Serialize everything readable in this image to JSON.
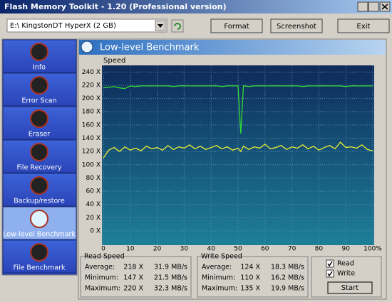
{
  "window": {
    "title": "Flash Memory Toolkit - 1.20 (Professional version)"
  },
  "toolbar": {
    "drive": "E:\\ KingstonDT HyperX (2 GB)",
    "buttons": [
      "Format",
      "Screenshot",
      "Exit"
    ]
  },
  "sidebar": {
    "items": [
      "Info",
      "Error Scan",
      "Eraser",
      "File Recovery",
      "Backup/restore",
      "Low-level Benchmark",
      "File Benchmark"
    ],
    "selected": 5
  },
  "panel": {
    "title": "Low-level Benchmark"
  },
  "chart_data": {
    "type": "line",
    "y_label": "Speed",
    "x": [
      0,
      2,
      4,
      6,
      8,
      10,
      12,
      14,
      16,
      18,
      20,
      22,
      24,
      26,
      28,
      30,
      32,
      34,
      36,
      38,
      40,
      42,
      44,
      46,
      48,
      50,
      51,
      52,
      54,
      56,
      58,
      60,
      62,
      64,
      66,
      68,
      70,
      72,
      74,
      76,
      78,
      80,
      82,
      84,
      86,
      88,
      90,
      92,
      94,
      96,
      98,
      100
    ],
    "series": [
      {
        "name": "Read",
        "color": "#33dd33",
        "values": [
          216,
          217,
          218,
          216,
          215,
          219,
          218,
          219,
          219,
          219,
          219,
          219,
          219,
          218,
          219,
          219,
          219,
          219,
          219,
          219,
          219,
          219,
          218,
          219,
          219,
          219,
          147,
          219,
          218,
          219,
          219,
          219,
          219,
          219,
          219,
          219,
          219,
          219,
          218,
          219,
          219,
          219,
          219,
          219,
          219,
          219,
          218,
          219,
          219,
          219,
          219,
          219
        ]
      },
      {
        "name": "Write",
        "color": "#eeee33",
        "values": [
          110,
          122,
          126,
          120,
          127,
          122,
          125,
          121,
          128,
          124,
          126,
          122,
          129,
          123,
          127,
          125,
          130,
          124,
          128,
          123,
          126,
          129,
          124,
          127,
          122,
          125,
          120,
          128,
          123,
          127,
          125,
          131,
          124,
          126,
          129,
          123,
          127,
          125,
          130,
          124,
          128,
          122,
          126,
          129,
          124,
          134,
          126,
          127,
          125,
          130,
          123,
          121
        ]
      }
    ],
    "xlim": [
      0,
      100
    ],
    "ylim": [
      0,
      250
    ],
    "xticks": [
      0,
      10,
      20,
      30,
      40,
      50,
      60,
      70,
      80,
      90,
      {
        "value": 100,
        "label": "100%"
      }
    ],
    "yticks": [
      {
        "value": 0,
        "label": "0 X"
      },
      {
        "value": 20,
        "label": "20 X"
      },
      {
        "value": 40,
        "label": "40 X"
      },
      {
        "value": 60,
        "label": "60 X"
      },
      {
        "value": 80,
        "label": "80 X"
      },
      {
        "value": 100,
        "label": "100 X"
      },
      {
        "value": 120,
        "label": "120 X"
      },
      {
        "value": 140,
        "label": "140 X"
      },
      {
        "value": 160,
        "label": "160 X"
      },
      {
        "value": 180,
        "label": "180 X"
      },
      {
        "value": 200,
        "label": "200 X"
      },
      {
        "value": 220,
        "label": "220 X"
      },
      {
        "value": 240,
        "label": "240 X"
      }
    ],
    "grid": true
  },
  "stats": [
    {
      "title": "Read Speed",
      "rows": [
        [
          "Average:",
          "218 X",
          "31.9 MB/s"
        ],
        [
          "Minimum:",
          "147 X",
          "21.5 MB/s"
        ],
        [
          "Maximum:",
          "220 X",
          "32.3 MB/s"
        ]
      ]
    },
    {
      "title": "Write Speed",
      "rows": [
        [
          "Average:",
          "124 X",
          "18.3 MB/s"
        ],
        [
          "Minimum:",
          "110 X",
          "16.2 MB/s"
        ],
        [
          "Maximum:",
          "135 X",
          "19.9 MB/s"
        ]
      ]
    }
  ],
  "options": {
    "checkboxes": [
      "Read",
      "Write"
    ],
    "start": "Start"
  }
}
